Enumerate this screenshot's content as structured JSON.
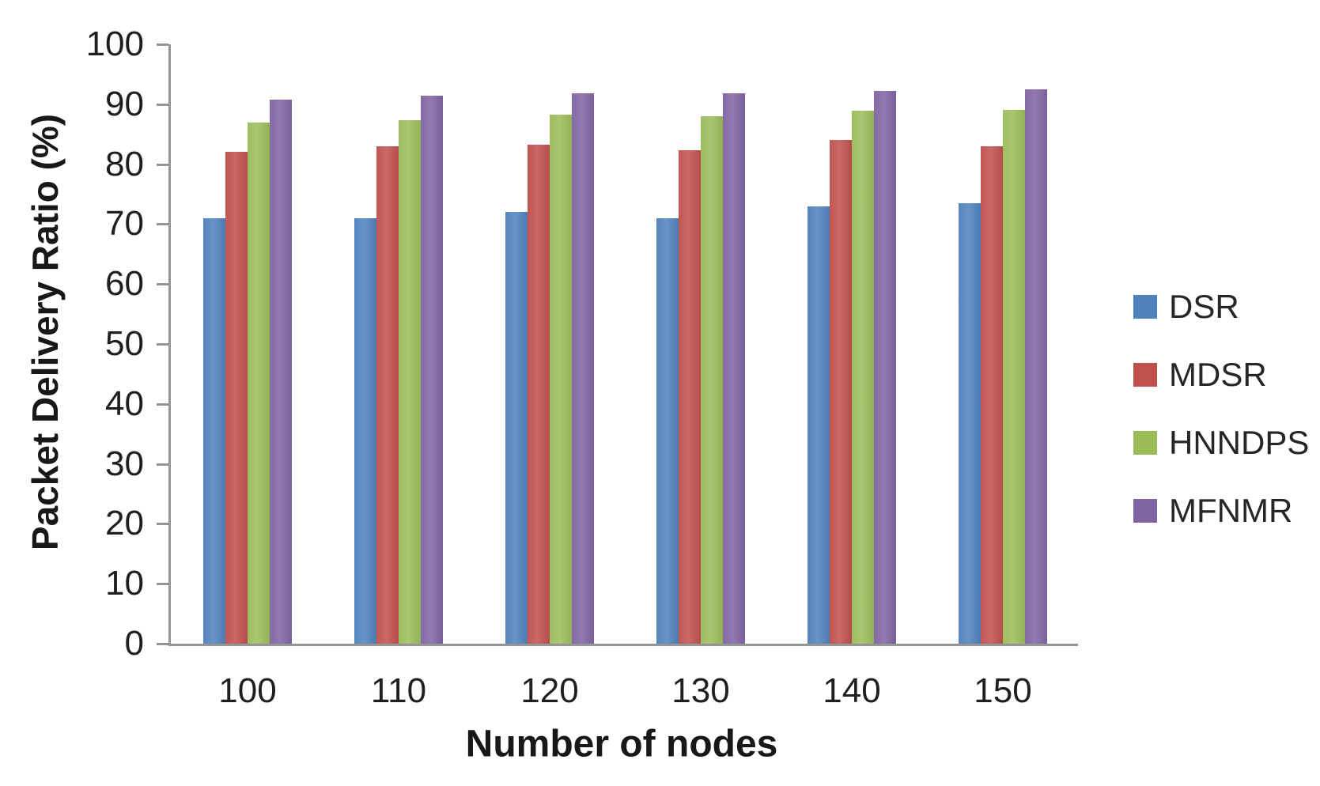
{
  "chart_data": {
    "type": "bar",
    "title": "",
    "xlabel": "Number of nodes",
    "ylabel": "Packet Delivery Ratio (%)",
    "categories": [
      "100",
      "110",
      "120",
      "130",
      "140",
      "150"
    ],
    "series": [
      {
        "name": "DSR",
        "color": "#4F81BD",
        "values": [
          71,
          71,
          72,
          71,
          73,
          73.5
        ]
      },
      {
        "name": "MDSR",
        "color": "#C0504D",
        "values": [
          82,
          83,
          83.3,
          82.3,
          84,
          83
        ]
      },
      {
        "name": "HNNDPS",
        "color": "#9BBB59",
        "values": [
          87,
          87.4,
          88.3,
          88,
          88.9,
          89
        ]
      },
      {
        "name": "MFNMR",
        "color": "#8064A2",
        "values": [
          90.8,
          91.4,
          91.8,
          91.8,
          92.2,
          92.5
        ]
      }
    ],
    "ylim": [
      0,
      100
    ],
    "yticks": [
      0,
      10,
      20,
      30,
      40,
      50,
      60,
      70,
      80,
      90,
      100
    ],
    "grid": false,
    "legend_position": "right"
  }
}
